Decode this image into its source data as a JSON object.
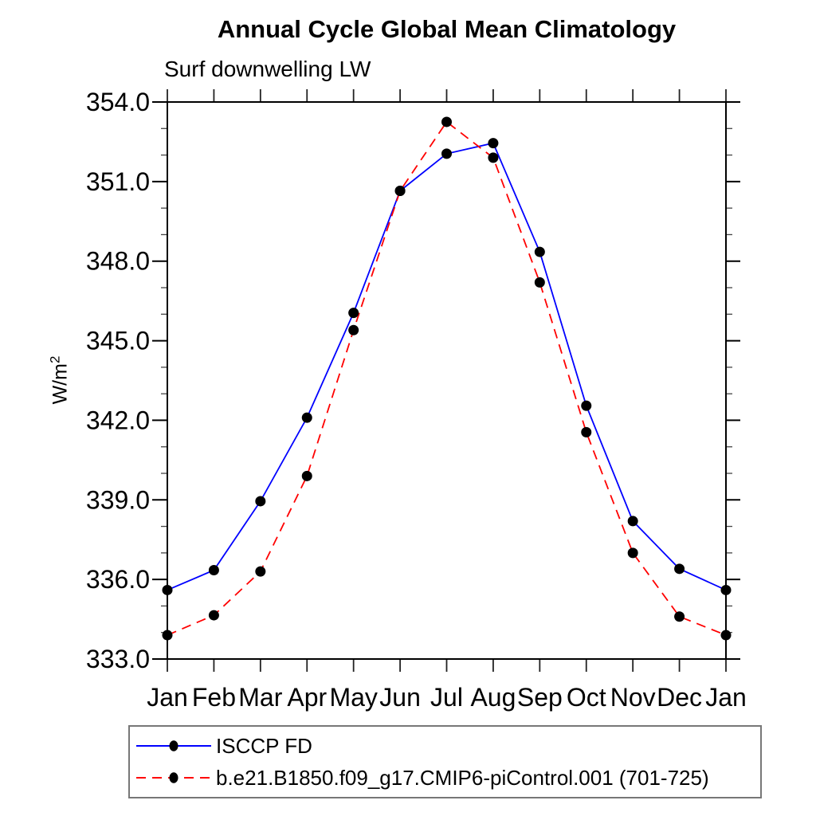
{
  "page": {
    "background": "#ffffff"
  },
  "chart_data": {
    "type": "line",
    "title": "Annual Cycle Global Mean Climatology",
    "subtitle": "Surf downwelling LW",
    "ylabel": {
      "base": "W/m",
      "sup": "2"
    },
    "x_categories": [
      "Jan",
      "Feb",
      "Mar",
      "Apr",
      "May",
      "Jun",
      "Jul",
      "Aug",
      "Sep",
      "Oct",
      "Nov",
      "Dec",
      "Jan"
    ],
    "ylim": [
      333.0,
      354.0
    ],
    "y_major_step": 3.0,
    "y_minor_step": 1.0,
    "y_tick_labels": [
      "333.0",
      "336.0",
      "339.0",
      "342.0",
      "345.0",
      "348.0",
      "351.0",
      "354.0"
    ],
    "grid": false,
    "legend_position": "bottom",
    "series": [
      {
        "name": "ISCCP FD",
        "color": "#0000ff",
        "line_style": "solid",
        "marker": "circle",
        "marker_color": "#000000",
        "values": [
          335.6,
          336.35,
          338.95,
          342.1,
          346.05,
          350.65,
          352.05,
          352.45,
          348.35,
          342.55,
          338.2,
          336.4,
          335.6
        ]
      },
      {
        "name": "b.e21.B1850.f09_g17.CMIP6-piControl.001 (701-725)",
        "color": "#ff0000",
        "line_style": "dashed",
        "marker": "circle",
        "marker_color": "#000000",
        "values": [
          333.9,
          334.65,
          336.3,
          339.9,
          345.4,
          350.65,
          353.25,
          351.9,
          347.2,
          341.55,
          337.0,
          334.6,
          333.9
        ]
      }
    ],
    "axis_color": "#000000",
    "tick_color": "#222222"
  }
}
